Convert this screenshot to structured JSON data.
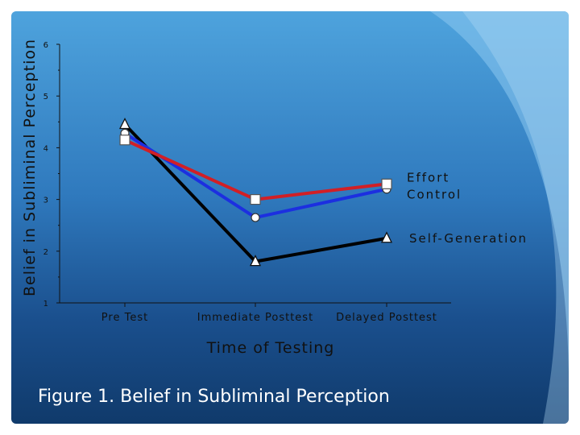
{
  "caption": "Figure 1. Belief in Subliminal Perception",
  "colors": {
    "self_generation": "#000000",
    "control": "#1c2fe0",
    "effort": "#d11f26",
    "text": "#111111"
  },
  "chart_data": {
    "type": "line",
    "title": "",
    "xlabel": "Time of Testing",
    "ylabel": "Belief in Subliminal Perception",
    "ylim": [
      1,
      6
    ],
    "yticks": [
      1,
      2,
      3,
      4,
      5,
      6
    ],
    "categories": [
      "Pre Test",
      "Immediate Posttest",
      "Delayed Posttest"
    ],
    "grid": false,
    "legend_placement": "right of line ends",
    "series": [
      {
        "name": "Self-Generation",
        "marker": "triangle",
        "color": "#000000",
        "values": [
          4.45,
          1.8,
          2.25
        ]
      },
      {
        "name": "Control",
        "marker": "circle",
        "color": "#1c2fe0",
        "values": [
          4.28,
          2.65,
          3.2
        ]
      },
      {
        "name": "Effort",
        "marker": "square",
        "color": "#d11f26",
        "values": [
          4.15,
          3.0,
          3.3
        ]
      }
    ]
  }
}
